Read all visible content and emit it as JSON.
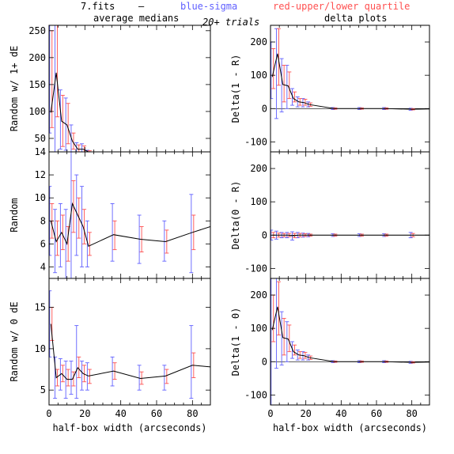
{
  "header": {
    "file": "7.fits",
    "dash": "—",
    "blue_label": "blue-sigma",
    "red_label": "red-upper/lower quartile",
    "col_left": "average medians",
    "col_right": "delta plots",
    "trials": "20+ trials"
  },
  "colors": {
    "line": "#000000",
    "sigma": "#6060ff",
    "quartile": "#ff5050",
    "frame": "#000000"
  },
  "chart_data": [
    {
      "id": "p1",
      "type": "line",
      "ylabel": "Random w/ 1+ dE",
      "xlabel": "",
      "xlim": [
        0,
        90
      ],
      "ylim": [
        25,
        260
      ],
      "xticks": [
        0,
        20,
        40,
        60,
        80
      ],
      "yticks": [
        50,
        100,
        150,
        200,
        250
      ],
      "series": [
        {
          "x": [
            1,
            4,
            7,
            10,
            13,
            16,
            19,
            22,
            36,
            51,
            65,
            80,
            90
          ],
          "y": [
            98,
            172,
            82,
            75,
            45,
            30,
            30,
            25,
            22,
            21,
            21,
            20,
            20
          ]
        }
      ],
      "sigma": [
        [
          60,
          280
        ],
        [
          20,
          280
        ],
        [
          30,
          140
        ],
        [
          28,
          125
        ],
        [
          20,
          75
        ],
        [
          20,
          42
        ],
        [
          20,
          40
        ],
        [
          22,
          28
        ],
        [
          20,
          24
        ],
        [
          19,
          23
        ],
        [
          19,
          23
        ],
        [
          18,
          22
        ],
        null
      ],
      "quartile": [
        [
          70,
          250
        ],
        [
          90,
          260
        ],
        [
          35,
          130
        ],
        [
          40,
          115
        ],
        [
          30,
          60
        ],
        [
          23,
          38
        ],
        [
          24,
          36
        ],
        [
          23,
          27
        ],
        [
          21,
          23
        ],
        [
          20,
          22
        ],
        [
          20,
          22
        ],
        [
          19,
          21
        ],
        null
      ]
    },
    {
      "id": "p2",
      "type": "line",
      "ylabel": "Delta(1 - R)",
      "xlabel": "",
      "xlim": [
        0,
        90
      ],
      "ylim": [
        -130,
        250
      ],
      "xticks": [
        0,
        20,
        40,
        60,
        80
      ],
      "yticks": [
        -100,
        0,
        100,
        200
      ],
      "series": [
        {
          "x": [
            1,
            4,
            7,
            10,
            13,
            16,
            19,
            22,
            36,
            51,
            65,
            80,
            90
          ],
          "y": [
            95,
            165,
            72,
            68,
            30,
            20,
            18,
            12,
            0,
            0,
            0,
            -2,
            -1
          ]
        }
      ],
      "sigma": [
        [
          30,
          200
        ],
        [
          -30,
          240
        ],
        [
          -10,
          150
        ],
        [
          0,
          130
        ],
        [
          10,
          60
        ],
        [
          5,
          35
        ],
        [
          5,
          30
        ],
        [
          5,
          20
        ],
        [
          -3,
          3
        ],
        [
          -3,
          3
        ],
        [
          -3,
          3
        ],
        [
          -5,
          1
        ],
        null
      ],
      "quartile": [
        [
          60,
          180
        ],
        [
          70,
          240
        ],
        [
          20,
          130
        ],
        [
          30,
          110
        ],
        [
          20,
          50
        ],
        [
          10,
          30
        ],
        [
          10,
          28
        ],
        [
          7,
          17
        ],
        [
          -2,
          2
        ],
        [
          -2,
          2
        ],
        [
          -2,
          2
        ],
        [
          -4,
          0
        ],
        null
      ]
    },
    {
      "id": "p3",
      "type": "line",
      "ylabel": "Random",
      "xlabel": "",
      "xlim": [
        0,
        90
      ],
      "ylim": [
        3,
        14
      ],
      "xticks": [
        0,
        20,
        40,
        60,
        80
      ],
      "yticks": [
        4,
        6,
        8,
        10,
        12,
        14
      ],
      "series": [
        {
          "x": [
            1,
            4,
            7,
            10,
            13,
            16,
            19,
            22,
            36,
            51,
            65,
            80,
            90
          ],
          "y": [
            8,
            6.2,
            7.0,
            6.0,
            9.5,
            8.5,
            7.5,
            5.8,
            6.8,
            6.4,
            6.2,
            7.0,
            7.5
          ]
        }
      ],
      "sigma": [
        [
          5,
          11
        ],
        [
          3.5,
          9
        ],
        [
          4,
          9.5
        ],
        [
          3,
          9
        ],
        [
          3,
          15
        ],
        [
          5,
          12
        ],
        [
          4,
          11
        ],
        [
          4,
          8
        ],
        [
          4.5,
          9.5
        ],
        [
          4.3,
          8.5
        ],
        [
          4.5,
          8
        ],
        [
          3.5,
          10.3
        ],
        null
      ],
      "quartile": [
        [
          6.5,
          9.5
        ],
        [
          5,
          8
        ],
        [
          5.5,
          8.5
        ],
        [
          4.5,
          7.5
        ],
        [
          7,
          11.5
        ],
        [
          6.5,
          10
        ],
        [
          6,
          9
        ],
        [
          5,
          7
        ],
        [
          5.5,
          8
        ],
        [
          5.3,
          7.5
        ],
        [
          5.2,
          7.2
        ],
        [
          5.5,
          8.5
        ],
        null
      ]
    },
    {
      "id": "p4",
      "type": "line",
      "ylabel": "Delta(0 - R)",
      "xlabel": "",
      "xlim": [
        0,
        90
      ],
      "ylim": [
        -130,
        250
      ],
      "xticks": [
        0,
        20,
        40,
        60,
        80
      ],
      "yticks": [
        -100,
        0,
        100,
        200
      ],
      "series": [
        {
          "x": [
            1,
            4,
            7,
            10,
            13,
            16,
            19,
            22,
            36,
            51,
            65,
            80,
            90
          ],
          "y": [
            0,
            0,
            0,
            0,
            -2,
            0,
            0,
            0,
            0,
            0,
            0,
            0,
            0
          ]
        }
      ],
      "sigma": [
        [
          -15,
          15
        ],
        [
          -12,
          12
        ],
        [
          -8,
          8
        ],
        [
          -8,
          8
        ],
        [
          -15,
          10
        ],
        [
          -8,
          8
        ],
        [
          -6,
          6
        ],
        [
          -5,
          5
        ],
        [
          -4,
          4
        ],
        [
          -4,
          4
        ],
        [
          -4,
          4
        ],
        [
          -8,
          8
        ],
        null
      ],
      "quartile": [
        [
          -8,
          8
        ],
        [
          -6,
          6
        ],
        [
          -5,
          5
        ],
        [
          -5,
          5
        ],
        [
          -8,
          5
        ],
        [
          -5,
          5
        ],
        [
          -4,
          4
        ],
        [
          -3,
          3
        ],
        [
          -3,
          3
        ],
        [
          -3,
          3
        ],
        [
          -3,
          3
        ],
        [
          -5,
          5
        ],
        null
      ]
    },
    {
      "id": "p5",
      "type": "line",
      "ylabel": "Random w/ 0 dE",
      "xlabel": "half-box width (arcseconds)",
      "xlim": [
        0,
        90
      ],
      "ylim": [
        3.2,
        18.5
      ],
      "xticks": [
        0,
        20,
        40,
        60,
        80
      ],
      "yticks": [
        5,
        10,
        15
      ],
      "series": [
        {
          "x": [
            1,
            4,
            7,
            10,
            13,
            16,
            19,
            22,
            36,
            51,
            65,
            80,
            90
          ],
          "y": [
            13,
            6.5,
            7.0,
            6.3,
            6.3,
            7.7,
            7.0,
            6.7,
            7.3,
            6.4,
            6.7,
            8.0,
            7.8
          ]
        }
      ],
      "sigma": [
        [
          9,
          17
        ],
        [
          4,
          9
        ],
        [
          5,
          8.8
        ],
        [
          4,
          8.5
        ],
        [
          4.5,
          8.5
        ],
        [
          4,
          12.8
        ],
        [
          5,
          8.5
        ],
        [
          5,
          8.3
        ],
        [
          5.5,
          9
        ],
        [
          5,
          8
        ],
        [
          5,
          8
        ],
        [
          4,
          12.8
        ],
        null
      ],
      "quartile": [
        [
          11,
          15
        ],
        [
          5.5,
          7.5
        ],
        [
          6,
          8
        ],
        [
          5.5,
          7.5
        ],
        [
          5.5,
          7.2
        ],
        [
          6.5,
          9
        ],
        [
          6,
          8
        ],
        [
          5.8,
          7.5
        ],
        [
          6.3,
          8.3
        ],
        [
          5.7,
          7.2
        ],
        [
          5.8,
          7.5
        ],
        [
          6.5,
          9.5
        ],
        null
      ]
    },
    {
      "id": "p6",
      "type": "line",
      "ylabel": "Delta(1 - 0)",
      "xlabel": "half-box width (arcseconds)",
      "xlim": [
        0,
        90
      ],
      "ylim": [
        -130,
        250
      ],
      "xticks": [
        0,
        20,
        40,
        60,
        80
      ],
      "yticks": [
        -100,
        0,
        100,
        200
      ],
      "series": [
        {
          "x": [
            1,
            4,
            7,
            10,
            13,
            16,
            19,
            22,
            36,
            51,
            65,
            80,
            90
          ],
          "y": [
            95,
            165,
            72,
            68,
            30,
            20,
            18,
            12,
            0,
            0,
            0,
            -2,
            -1
          ]
        }
      ],
      "sigma": [
        [
          -130,
          250
        ],
        [
          -20,
          250
        ],
        [
          -10,
          150
        ],
        [
          0,
          120
        ],
        [
          10,
          60
        ],
        [
          5,
          35
        ],
        [
          5,
          30
        ],
        [
          5,
          20
        ],
        [
          -3,
          3
        ],
        [
          -3,
          3
        ],
        [
          -3,
          3
        ],
        [
          -5,
          1
        ],
        null
      ],
      "quartile": [
        [
          60,
          200
        ],
        [
          80,
          240
        ],
        [
          20,
          130
        ],
        [
          30,
          110
        ],
        [
          20,
          50
        ],
        [
          10,
          30
        ],
        [
          10,
          28
        ],
        [
          7,
          17
        ],
        [
          -2,
          2
        ],
        [
          -2,
          2
        ],
        [
          -2,
          2
        ],
        [
          -4,
          0
        ],
        null
      ]
    }
  ]
}
